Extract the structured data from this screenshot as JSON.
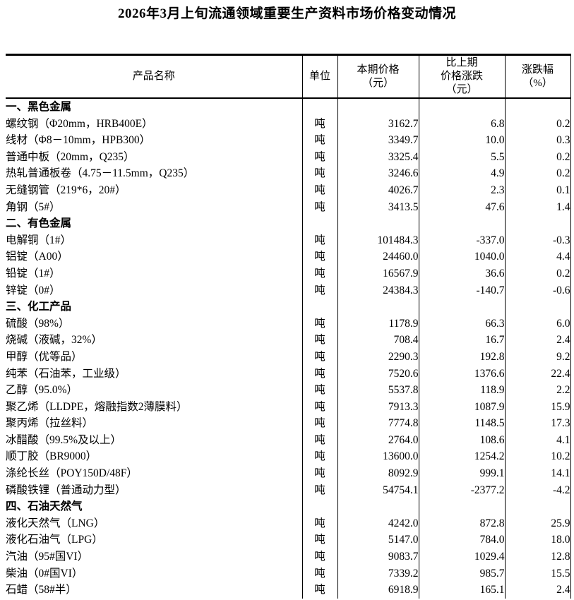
{
  "title": "2026年3月上旬流通领域重要生产资料市场价格变动情况",
  "table": {
    "headers": {
      "product": "产品名称",
      "unit": "单位",
      "price_lines": [
        "本期价格",
        "（元）"
      ],
      "change_lines": [
        "比上期",
        "价格涨跌",
        "（元）"
      ],
      "pct_lines": [
        "涨跌幅",
        "（%）"
      ]
    },
    "sections": [
      {
        "name": "一、黑色金属",
        "rows": [
          {
            "product": "螺纹钢（Φ20mm，HRB400E）",
            "unit": "吨",
            "price": "3162.7",
            "change": "6.8",
            "pct": "0.2"
          },
          {
            "product": "线材（Φ8－10mm，HPB300）",
            "unit": "吨",
            "price": "3349.7",
            "change": "10.0",
            "pct": "0.3"
          },
          {
            "product": "普通中板（20mm，Q235）",
            "unit": "吨",
            "price": "3325.4",
            "change": "5.5",
            "pct": "0.2"
          },
          {
            "product": "热轧普通板卷（4.75－11.5mm，Q235）",
            "unit": "吨",
            "price": "3246.6",
            "change": "4.9",
            "pct": "0.2"
          },
          {
            "product": "无缝钢管（219*6，20#）",
            "unit": "吨",
            "price": "4026.7",
            "change": "2.3",
            "pct": "0.1"
          },
          {
            "product": "角钢（5#）",
            "unit": "吨",
            "price": "3413.5",
            "change": "47.6",
            "pct": "1.4"
          }
        ]
      },
      {
        "name": "二、有色金属",
        "rows": [
          {
            "product": "电解铜（1#）",
            "unit": "吨",
            "price": "101484.3",
            "change": "-337.0",
            "pct": "-0.3"
          },
          {
            "product": "铝锭（A00）",
            "unit": "吨",
            "price": "24460.0",
            "change": "1040.0",
            "pct": "4.4"
          },
          {
            "product": "铅锭（1#）",
            "unit": "吨",
            "price": "16567.9",
            "change": "36.6",
            "pct": "0.2"
          },
          {
            "product": "锌锭（0#）",
            "unit": "吨",
            "price": "24384.3",
            "change": "-140.7",
            "pct": "-0.6"
          }
        ]
      },
      {
        "name": "三、化工产品",
        "rows": [
          {
            "product": "硫酸（98%）",
            "unit": "吨",
            "price": "1178.9",
            "change": "66.3",
            "pct": "6.0"
          },
          {
            "product": "烧碱（液碱，32%）",
            "unit": "吨",
            "price": "708.4",
            "change": "16.7",
            "pct": "2.4"
          },
          {
            "product": "甲醇（优等品）",
            "unit": "吨",
            "price": "2290.3",
            "change": "192.8",
            "pct": "9.2"
          },
          {
            "product": "纯苯（石油苯，工业级）",
            "unit": "吨",
            "price": "7520.6",
            "change": "1376.6",
            "pct": "22.4"
          },
          {
            "product": "乙醇（95.0%）",
            "unit": "吨",
            "price": "5537.8",
            "change": "118.9",
            "pct": "2.2"
          },
          {
            "product": "聚乙烯（LLDPE，熔融指数2薄膜料）",
            "unit": "吨",
            "price": "7913.3",
            "change": "1087.9",
            "pct": "15.9"
          },
          {
            "product": "聚丙烯（拉丝料）",
            "unit": "吨",
            "price": "7774.8",
            "change": "1148.5",
            "pct": "17.3"
          },
          {
            "product": "冰醋酸（99.5%及以上）",
            "unit": "吨",
            "price": "2764.0",
            "change": "108.6",
            "pct": "4.1"
          },
          {
            "product": "顺丁胶（BR9000）",
            "unit": "吨",
            "price": "13600.0",
            "change": "1254.2",
            "pct": "10.2"
          },
          {
            "product": "涤纶长丝（POY150D/48F）",
            "unit": "吨",
            "price": "8092.9",
            "change": "999.1",
            "pct": "14.1"
          },
          {
            "product": "磷酸铁锂（普通动力型）",
            "unit": "吨",
            "price": "54754.1",
            "change": "-2377.2",
            "pct": "-4.2"
          }
        ]
      },
      {
        "name": "四、石油天然气",
        "rows": [
          {
            "product": "液化天然气（LNG）",
            "unit": "吨",
            "price": "4242.0",
            "change": "872.8",
            "pct": "25.9"
          },
          {
            "product": "液化石油气（LPG）",
            "unit": "吨",
            "price": "5147.0",
            "change": "784.0",
            "pct": "18.0"
          },
          {
            "product": "汽油（95#国VI）",
            "unit": "吨",
            "price": "9083.7",
            "change": "1029.4",
            "pct": "12.8"
          },
          {
            "product": "柴油（0#国VI）",
            "unit": "吨",
            "price": "7339.2",
            "change": "985.7",
            "pct": "15.5"
          },
          {
            "product": "石蜡（58#半）",
            "unit": "吨",
            "price": "6918.9",
            "change": "165.1",
            "pct": "2.4"
          }
        ]
      }
    ]
  }
}
